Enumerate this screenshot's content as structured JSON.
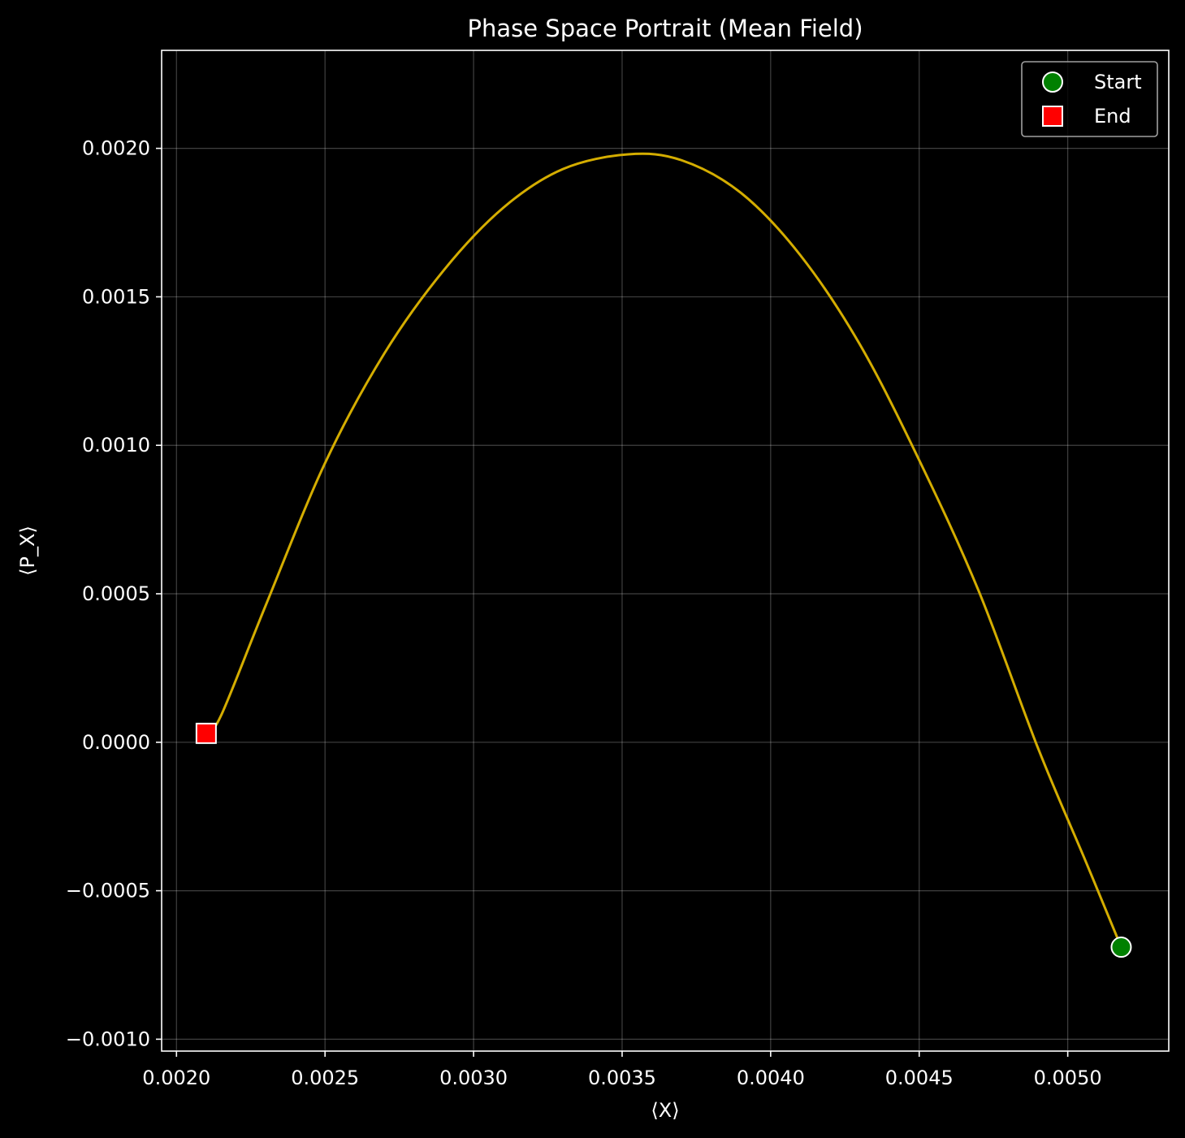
{
  "chart_data": {
    "type": "line",
    "title": "Phase Space Portrait (Mean Field)",
    "xlabel": "⟨X⟩",
    "ylabel": "⟨P_X⟩",
    "xlim": [
      0.00195,
      0.00534
    ],
    "ylim": [
      -0.00104,
      0.00233
    ],
    "grid": true,
    "legend_position": "top-right",
    "x_ticks": [
      0.002,
      0.0025,
      0.003,
      0.0035,
      0.004,
      0.0045,
      0.005
    ],
    "x_tick_labels": [
      "0.0020",
      "0.0025",
      "0.0030",
      "0.0035",
      "0.0040",
      "0.0045",
      "0.0050"
    ],
    "y_ticks": [
      -0.001,
      -0.0005,
      0.0,
      0.0005,
      0.001,
      0.0015,
      0.002
    ],
    "y_tick_labels": [
      "−0.0010",
      "−0.0005",
      "0.0000",
      "0.0005",
      "0.0010",
      "0.0015",
      "0.0020"
    ],
    "series": [
      {
        "color": "#d4ad00",
        "x": [
          0.00518,
          0.00506,
          0.0049,
          0.0047,
          0.0045,
          0.0043,
          0.0041,
          0.0039,
          0.0037,
          0.00352,
          0.0033,
          0.0031,
          0.0029,
          0.0027,
          0.0025,
          0.0023,
          0.00215,
          0.0021
        ],
        "y": [
          -0.00069,
          -0.0004,
          -2e-05,
          0.00051,
          0.00095,
          0.00134,
          0.00164,
          0.00185,
          0.00196,
          0.00198,
          0.00193,
          0.0018,
          0.00159,
          0.00131,
          0.00094,
          0.00046,
          9e-05,
          3e-05
        ]
      }
    ],
    "markers": [
      {
        "label": "Start",
        "shape": "circle",
        "color": "#008000",
        "x": 0.00518,
        "y": -0.00069
      },
      {
        "label": "End",
        "shape": "square",
        "color": "#ff0000",
        "x": 0.0021,
        "y": 3e-05
      }
    ]
  }
}
